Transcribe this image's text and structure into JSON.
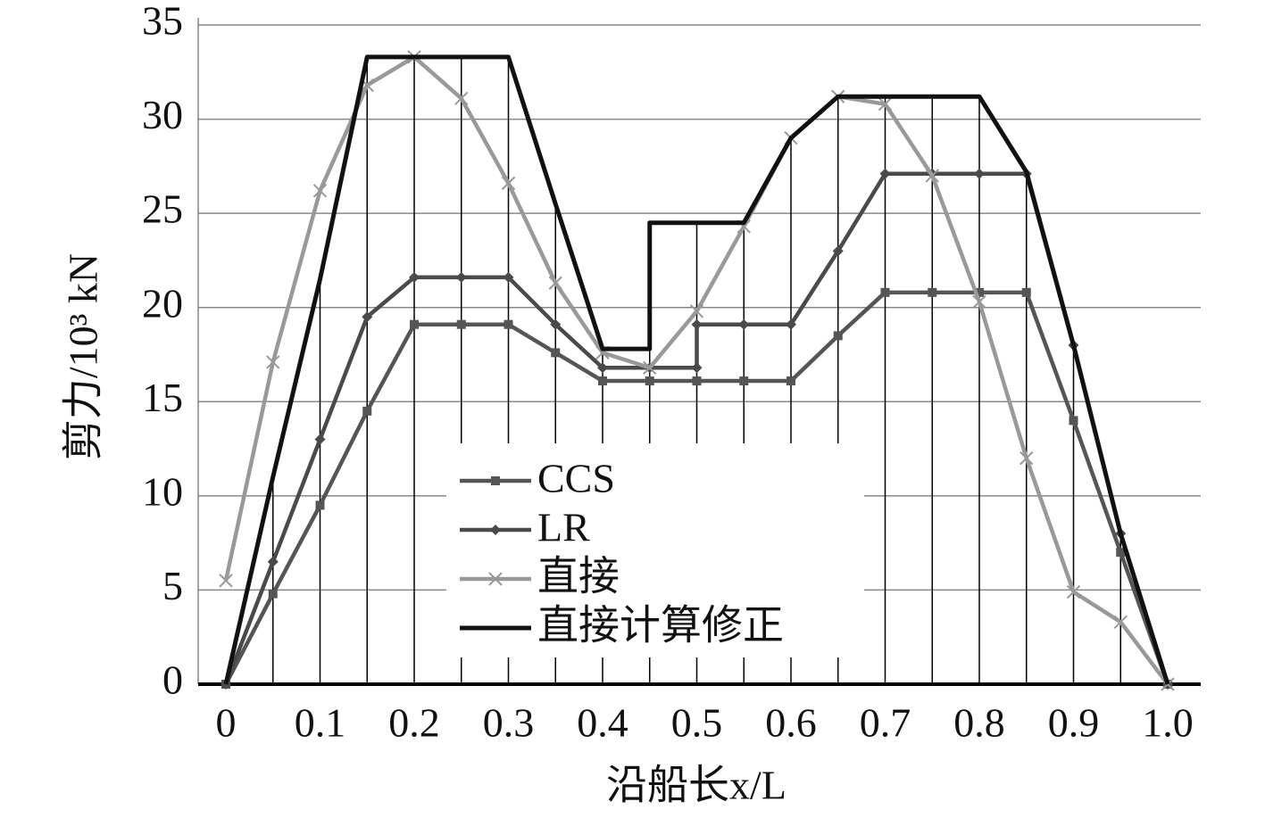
{
  "chart_data": {
    "type": "line",
    "xlabel": "沿船长x/L",
    "ylabel": "剪力/10³ kN",
    "xlim": [
      0,
      1.0
    ],
    "ylim": [
      0,
      35
    ],
    "xticks": [
      0,
      0.1,
      0.2,
      0.3,
      0.4,
      0.5,
      0.6,
      0.7,
      0.8,
      0.9,
      {
        "value": 1.0,
        "label": "1.0"
      }
    ],
    "yticks": [
      0,
      5,
      10,
      15,
      20,
      25,
      30,
      35
    ],
    "grid": true,
    "legend": "center",
    "series": [
      {
        "name": "CCS",
        "color": "#555555",
        "marker": "square",
        "x": [
          0,
          0.05,
          0.1,
          0.15,
          0.2,
          0.25,
          0.3,
          0.35,
          0.4,
          0.45,
          0.5,
          0.5,
          0.55,
          0.6,
          0.65,
          0.7,
          0.75,
          0.8,
          0.85,
          0.9,
          0.95,
          1.0
        ],
        "values": [
          0,
          4.8,
          9.5,
          14.5,
          19.1,
          19.1,
          19.1,
          17.6,
          16.1,
          16.1,
          16.1,
          16.1,
          16.1,
          16.1,
          18.5,
          20.8,
          20.8,
          20.8,
          20.8,
          14,
          7,
          0
        ]
      },
      {
        "name": "LR",
        "color": "#4a4a4a",
        "marker": "diamond",
        "x": [
          0,
          0.05,
          0.1,
          0.15,
          0.2,
          0.25,
          0.3,
          0.35,
          0.4,
          0.45,
          0.5,
          0.5,
          0.55,
          0.6,
          0.65,
          0.7,
          0.75,
          0.8,
          0.85,
          0.9,
          0.95,
          1.0
        ],
        "values": [
          0,
          6.5,
          13,
          19.5,
          21.6,
          21.6,
          21.6,
          19.1,
          16.8,
          16.8,
          16.8,
          19.1,
          19.1,
          19.1,
          23,
          27.1,
          27.1,
          27.1,
          27.1,
          18,
          8,
          0
        ]
      },
      {
        "name": "直接",
        "color": "#999999",
        "marker": "x",
        "x": [
          0,
          0.05,
          0.1,
          0.15,
          0.2,
          0.25,
          0.3,
          0.35,
          0.4,
          0.45,
          0.5,
          0.55,
          0.6,
          0.65,
          0.7,
          0.75,
          0.8,
          0.85,
          0.9,
          0.95,
          1.0
        ],
        "values": [
          5.5,
          17.1,
          26.2,
          31.8,
          33.3,
          31.1,
          26.6,
          21.3,
          17.6,
          16.8,
          19.8,
          24.3,
          29,
          31.2,
          30.8,
          27,
          20.3,
          12,
          4.9,
          3.3,
          0
        ]
      },
      {
        "name": "直接计算修正",
        "color": "#111111",
        "marker": "none",
        "x": [
          0,
          0.05,
          0.1,
          0.15,
          0.2,
          0.25,
          0.3,
          0.35,
          0.4,
          0.45,
          0.45,
          0.5,
          0.55,
          0.6,
          0.65,
          0.7,
          0.75,
          0.8,
          0.85,
          0.9,
          0.95,
          1.0
        ],
        "values": [
          0,
          11,
          21.5,
          33.3,
          33.3,
          33.3,
          33.3,
          25.5,
          17.8,
          17.8,
          24.5,
          24.5,
          24.5,
          29,
          31.2,
          31.2,
          31.2,
          31.2,
          27.2,
          18,
          8,
          0
        ]
      }
    ]
  }
}
